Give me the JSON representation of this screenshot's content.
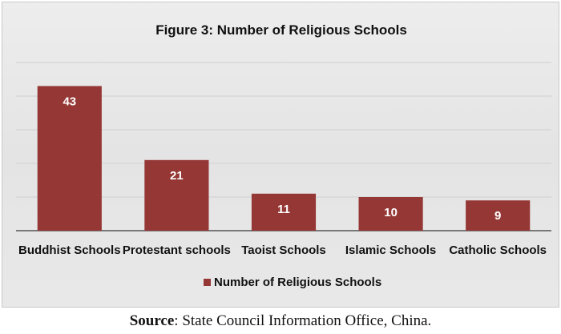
{
  "chart_data": {
    "type": "bar",
    "title": "Figure 3: Number of Religious Schools",
    "categories": [
      "Buddhist Schools",
      "Protestant schools",
      "Taoist Schools",
      "Islamic Schools",
      "Catholic Schools"
    ],
    "series": [
      {
        "name": "Number of Religious Schools",
        "values": [
          43,
          21,
          11,
          10,
          9
        ]
      }
    ],
    "ylim": [
      0,
      50
    ],
    "grid": true,
    "legend": "bottom",
    "bar_color": "#953735"
  },
  "source": {
    "label": "Source",
    "text": ": State Council Information Office, China."
  }
}
